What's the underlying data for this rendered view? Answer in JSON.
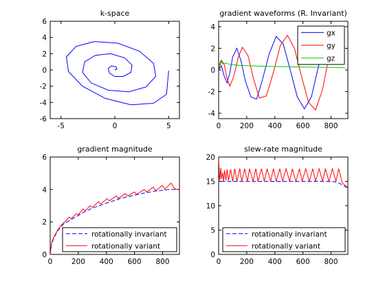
{
  "chart_data": [
    {
      "type": "line",
      "title": "k-space",
      "xlim": [
        -6,
        6
      ],
      "ylim": [
        -6,
        6
      ],
      "xticks": [
        -5,
        0,
        5
      ],
      "yticks": [
        -6,
        -4,
        -2,
        0,
        2,
        4,
        6
      ],
      "grid": false,
      "description": "Archimedean spiral trajectory starting at the origin and winding outward to (5, 0)",
      "series": [
        {
          "color": "#0000ff",
          "x": [
            0.0,
            0.2,
            0.1,
            -0.3,
            -0.6,
            -0.5,
            0.0,
            0.8,
            1.5,
            1.6,
            0.9,
            -0.4,
            -1.8,
            -2.8,
            -3.0,
            -2.2,
            -0.6,
            1.3,
            2.9,
            3.8,
            3.6,
            2.3,
            0.3,
            -1.9,
            -3.6,
            -4.5,
            -4.3,
            -3.0,
            -0.9,
            1.5,
            3.6,
            4.8,
            5.0
          ],
          "y": [
            0.0,
            0.1,
            0.4,
            0.5,
            0.2,
            -0.4,
            -0.8,
            -0.8,
            -0.3,
            0.6,
            1.5,
            2.0,
            1.8,
            1.0,
            -0.3,
            -1.6,
            -2.5,
            -2.7,
            -2.1,
            -0.8,
            0.8,
            2.3,
            3.3,
            3.5,
            2.9,
            1.6,
            -0.2,
            -2.0,
            -3.5,
            -4.3,
            -4.1,
            -3.0,
            -0.1
          ]
        }
      ]
    },
    {
      "type": "line",
      "title": "gradient waveforms (R. Invariant)",
      "xlim": [
        0,
        920
      ],
      "ylim": [
        -4.5,
        4.5
      ],
      "xticks": [
        0,
        200,
        400,
        600,
        800
      ],
      "yticks": [
        -4,
        -2,
        0,
        2,
        4
      ],
      "grid": false,
      "legend": "top-right",
      "series": [
        {
          "name": "gx",
          "color": "#0000ff",
          "x": [
            0,
            20,
            40,
            60,
            80,
            100,
            130,
            160,
            190,
            230,
            270,
            310,
            360,
            410,
            460,
            510,
            560,
            610,
            660,
            710,
            760,
            810,
            860
          ],
          "y": [
            0,
            0.4,
            -0.6,
            -1.2,
            -0.3,
            1.2,
            2.0,
            0.8,
            -1.0,
            -2.5,
            -2.7,
            -1.0,
            1.5,
            3.1,
            2.4,
            0.0,
            -2.5,
            -3.6,
            -2.5,
            0.3,
            3.0,
            3.7,
            1.0
          ]
        },
        {
          "name": "gy",
          "color": "#ff0000",
          "x": [
            0,
            20,
            40,
            60,
            80,
            110,
            140,
            170,
            210,
            250,
            290,
            340,
            390,
            440,
            490,
            540,
            590,
            640,
            690,
            740,
            790,
            840,
            880
          ],
          "y": [
            0,
            0.9,
            0.5,
            -0.8,
            -1.5,
            -0.5,
            1.2,
            2.1,
            1.3,
            -0.9,
            -2.6,
            -2.4,
            -0.2,
            2.3,
            3.2,
            2.0,
            -0.6,
            -3.0,
            -3.7,
            -1.8,
            1.5,
            3.7,
            3.0
          ]
        },
        {
          "name": "gz",
          "color": "#00cc00",
          "x": [
            0,
            15,
            30,
            50,
            80,
            150,
            300,
            450,
            600,
            750,
            900
          ],
          "y": [
            0.3,
            0.85,
            0.55,
            0.62,
            0.52,
            0.42,
            0.35,
            0.3,
            0.27,
            0.24,
            0.2
          ]
        }
      ]
    },
    {
      "type": "line",
      "title": "gradient magnitude",
      "xlim": [
        0,
        920
      ],
      "ylim": [
        0,
        6
      ],
      "xticks": [
        0,
        200,
        400,
        600,
        800
      ],
      "yticks": [
        0,
        2,
        4,
        6
      ],
      "grid": false,
      "legend": "bottom-right",
      "series": [
        {
          "name": "rotationally invariant",
          "color": "#0000ff",
          "dash": true,
          "x": [
            0,
            10,
            25,
            50,
            75,
            100,
            150,
            200,
            250,
            300,
            350,
            400,
            450,
            500,
            550,
            600,
            650,
            700,
            750,
            800,
            850,
            900
          ],
          "y": [
            0,
            0.6,
            1.0,
            1.4,
            1.7,
            1.9,
            2.15,
            2.4,
            2.65,
            2.85,
            3.0,
            3.15,
            3.3,
            3.45,
            3.55,
            3.65,
            3.75,
            3.83,
            3.9,
            3.95,
            4.0,
            4.0
          ]
        },
        {
          "name": "rotationally variant",
          "color": "#ff0000",
          "x": [
            0,
            10,
            25,
            50,
            75,
            95,
            105,
            135,
            150,
            185,
            200,
            235,
            250,
            285,
            300,
            345,
            360,
            405,
            420,
            470,
            485,
            535,
            550,
            600,
            615,
            670,
            685,
            735,
            750,
            800,
            815,
            860,
            885,
            900,
            920
          ],
          "y": [
            0,
            0.7,
            1.05,
            1.45,
            1.75,
            1.95,
            2.0,
            2.3,
            2.2,
            2.5,
            2.45,
            2.8,
            2.7,
            3.0,
            2.9,
            3.25,
            3.1,
            3.45,
            3.3,
            3.6,
            3.45,
            3.75,
            3.6,
            3.85,
            3.7,
            4.0,
            3.85,
            4.15,
            3.92,
            4.25,
            4.0,
            4.4,
            4.05,
            4.0,
            4.0
          ]
        }
      ],
      "legend_entries": [
        "rotationally invariant",
        "rotationally variant"
      ]
    },
    {
      "type": "line",
      "title": "slew-rate magnitude",
      "xlim": [
        0,
        920
      ],
      "ylim": [
        0,
        20
      ],
      "xticks": [
        0,
        200,
        400,
        600,
        800
      ],
      "yticks": [
        0,
        5,
        10,
        15,
        20
      ],
      "grid": false,
      "legend": "bottom-right",
      "series": [
        {
          "name": "rotationally invariant",
          "color": "#0000ff",
          "dash": true,
          "x": [
            0,
            5,
            10,
            20,
            40,
            100,
            300,
            600,
            800,
            830,
            860,
            890,
            920
          ],
          "y": [
            17.5,
            16,
            15.3,
            15.0,
            15.0,
            15.0,
            15.0,
            15.0,
            15.0,
            14.9,
            14.6,
            14.1,
            13.6
          ]
        },
        {
          "name": "rotationally variant",
          "color": "#ff0000",
          "x": [
            0,
            4,
            8,
            15,
            20,
            28,
            35,
            42,
            52,
            60,
            70,
            85,
            100,
            115,
            130,
            150,
            165,
            185,
            205,
            220,
            245,
            265,
            280,
            305,
            325,
            345,
            370,
            390,
            410,
            435,
            455,
            480,
            505,
            525,
            550,
            575,
            595,
            620,
            645,
            670,
            690,
            715,
            740,
            760,
            785,
            810,
            835,
            855,
            880,
            900,
            920
          ],
          "y": [
            19.5,
            17.5,
            15.2,
            17.8,
            15.5,
            16.8,
            15.0,
            17.3,
            15.2,
            17.5,
            15.2,
            17.5,
            15.0,
            17.6,
            15.0,
            17.6,
            15.0,
            17.6,
            15.0,
            17.6,
            15.0,
            17.6,
            15.0,
            17.6,
            15.0,
            17.6,
            15.0,
            17.6,
            15.0,
            17.6,
            15.0,
            17.6,
            15.0,
            17.6,
            15.0,
            17.6,
            15.0,
            17.6,
            15.0,
            17.6,
            15.0,
            17.6,
            15.0,
            17.6,
            15.0,
            17.6,
            15.0,
            17.6,
            14.7,
            14.2,
            13.7
          ]
        }
      ],
      "legend_entries": [
        "rotationally invariant",
        "rotationally variant"
      ]
    }
  ]
}
